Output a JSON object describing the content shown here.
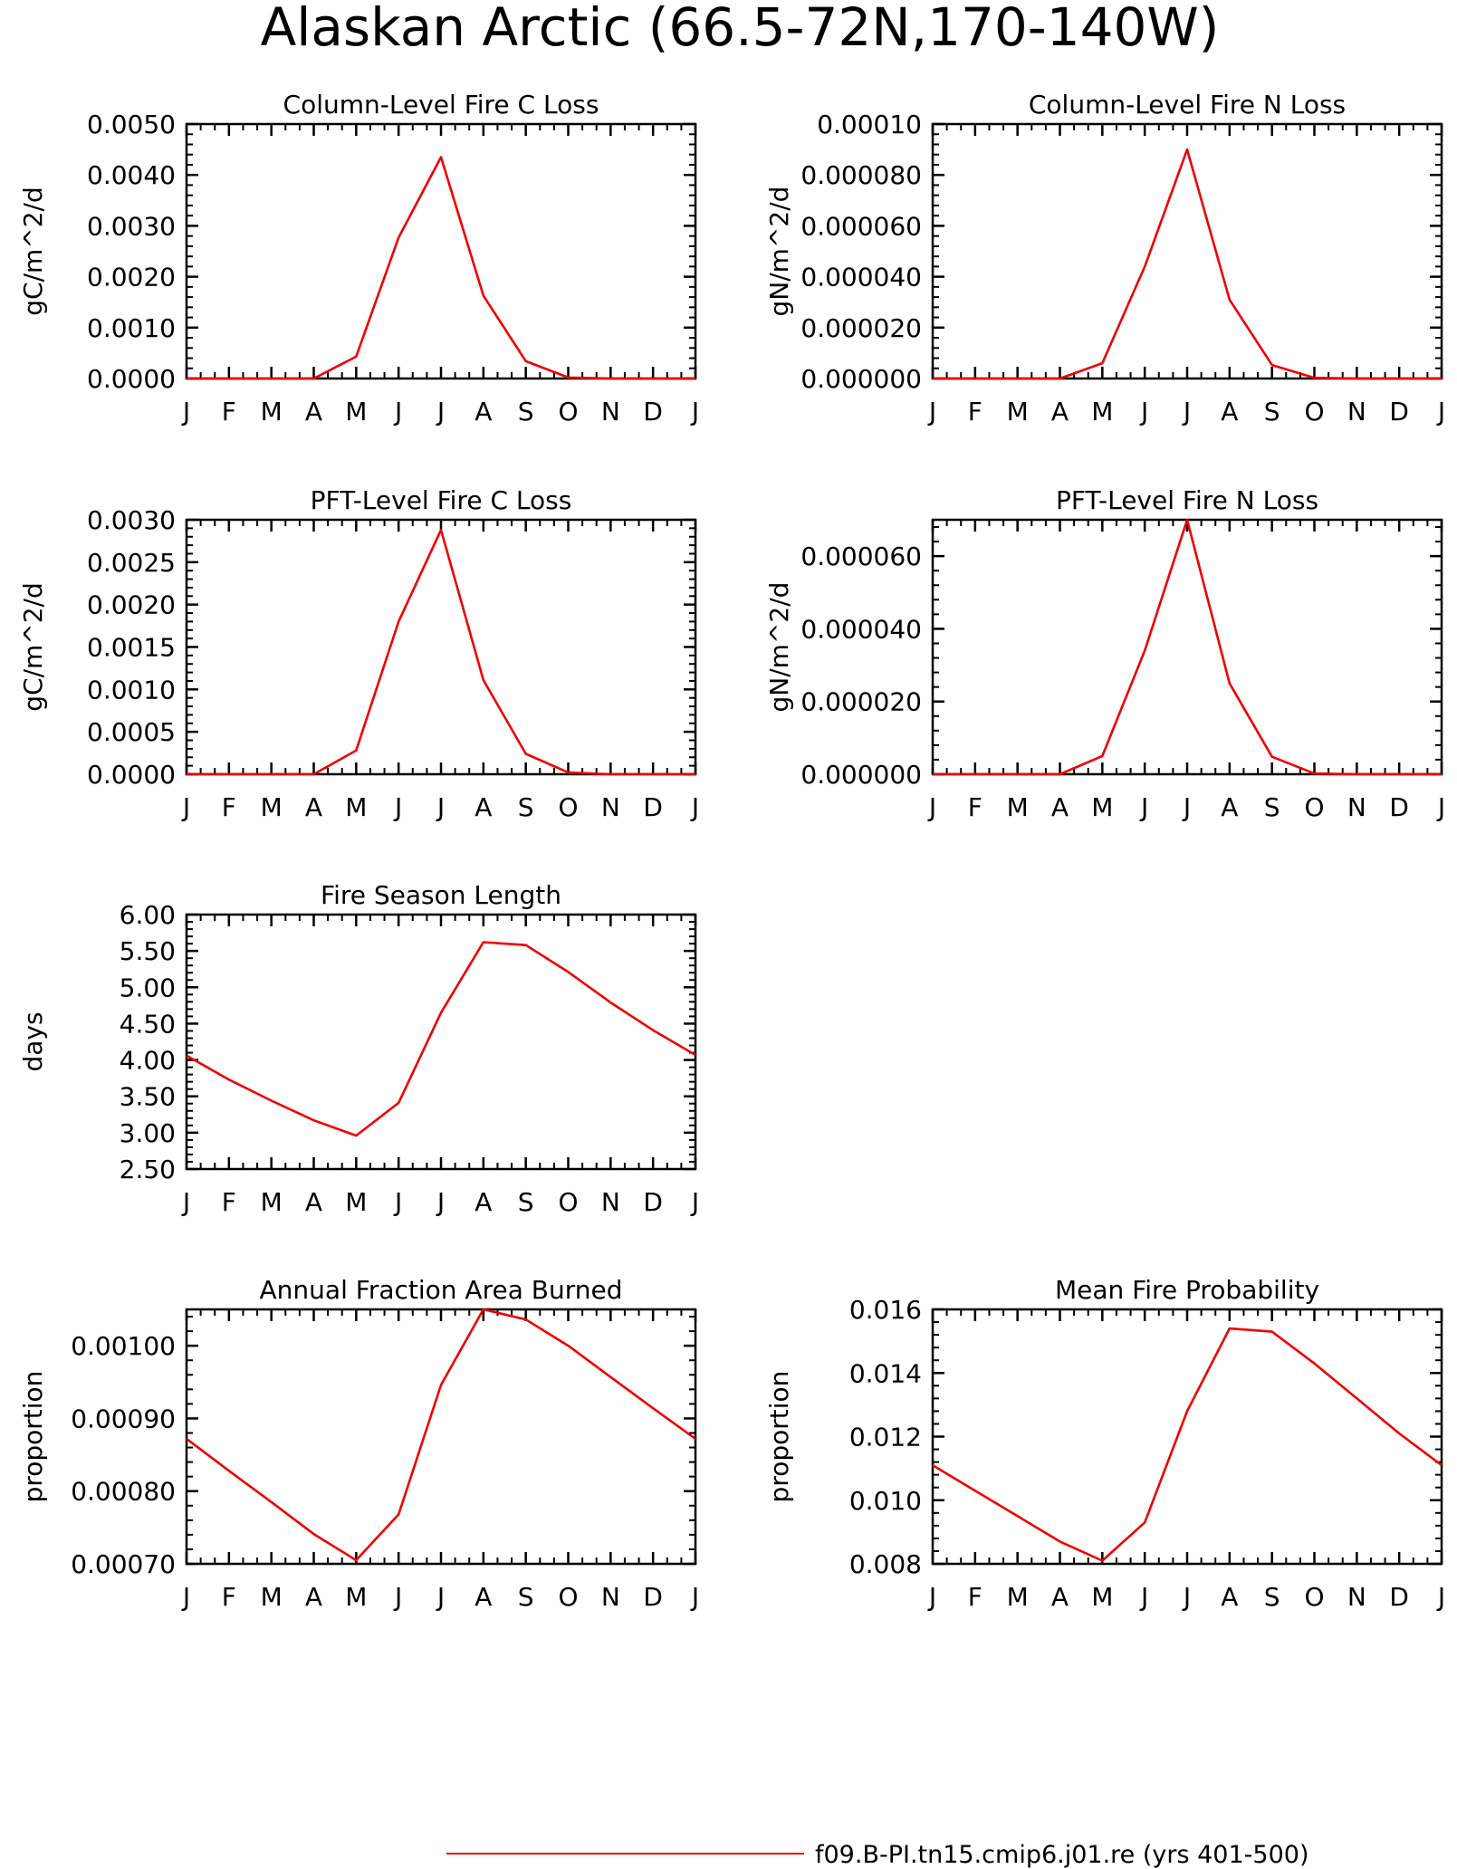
{
  "figure": {
    "title": "Alaskan Arctic (66.5-72N,170-140W)",
    "line_color": "#ee0000"
  },
  "legend": {
    "label": "f09.B-PI.tn15.cmip6.j01.re (yrs 401-500)"
  },
  "chart_data": [
    {
      "type": "line",
      "title": "Column-Level Fire C Loss",
      "ylabel": "gC/m^2/d",
      "categories": [
        "J",
        "F",
        "M",
        "A",
        "M",
        "J",
        "J",
        "A",
        "S",
        "O",
        "N",
        "D",
        "J"
      ],
      "ylim": [
        0,
        0.005
      ],
      "yticks": [
        "0.0000",
        "0.0010",
        "0.0020",
        "0.0030",
        "0.0040",
        "0.0050"
      ],
      "series": [
        {
          "values": [
            0,
            0,
            0,
            0,
            0.00043,
            0.00277,
            0.00435,
            0.00163,
            0.00034,
            2e-05,
            0,
            0,
            0
          ]
        }
      ]
    },
    {
      "type": "line",
      "title": "Column-Level Fire N Loss",
      "ylabel": "gN/m^2/d",
      "categories": [
        "J",
        "F",
        "M",
        "A",
        "M",
        "J",
        "J",
        "A",
        "S",
        "O",
        "N",
        "D",
        "J"
      ],
      "ylim": [
        0,
        0.0001
      ],
      "yticks": [
        "0.000000",
        "0.000020",
        "0.000040",
        "0.000060",
        "0.000080",
        "0.00010"
      ],
      "series": [
        {
          "values": [
            0,
            0,
            0,
            0,
            6e-06,
            4.4e-05,
            9e-05,
            3.1e-05,
            5.3e-06,
            3e-07,
            0,
            0,
            0
          ]
        }
      ]
    },
    {
      "type": "line",
      "title": "PFT-Level Fire C Loss",
      "ylabel": "gC/m^2/d",
      "categories": [
        "J",
        "F",
        "M",
        "A",
        "M",
        "J",
        "J",
        "A",
        "S",
        "O",
        "N",
        "D",
        "J"
      ],
      "ylim": [
        0,
        0.003
      ],
      "yticks": [
        "0.0000",
        "0.0005",
        "0.0010",
        "0.0015",
        "0.0020",
        "0.0025",
        "0.0030"
      ],
      "series": [
        {
          "values": [
            0,
            0,
            0,
            0,
            0.00028,
            0.0018,
            0.00288,
            0.00111,
            0.00024,
            2e-05,
            0,
            0,
            0
          ]
        }
      ]
    },
    {
      "type": "line",
      "title": "PFT-Level Fire N Loss",
      "ylabel": "gN/m^2/d",
      "categories": [
        "J",
        "F",
        "M",
        "A",
        "M",
        "J",
        "J",
        "A",
        "S",
        "O",
        "N",
        "D",
        "J"
      ],
      "ylim": [
        0,
        7e-05
      ],
      "yticks": [
        "0.000000",
        "0.000020",
        "0.000040",
        "0.000060"
      ],
      "series": [
        {
          "values": [
            0,
            0,
            0,
            0,
            5e-06,
            3.4e-05,
            7e-05,
            2.5e-05,
            4.8e-06,
            2e-07,
            0,
            0,
            0
          ]
        }
      ]
    },
    {
      "type": "line",
      "title": "Fire Season Length",
      "ylabel": "days",
      "categories": [
        "J",
        "F",
        "M",
        "A",
        "M",
        "J",
        "J",
        "A",
        "S",
        "O",
        "N",
        "D",
        "J"
      ],
      "ylim": [
        2.5,
        6.0
      ],
      "yticks": [
        "2.50",
        "3.00",
        "3.50",
        "4.00",
        "4.50",
        "5.00",
        "5.50",
        "6.00"
      ],
      "series": [
        {
          "values": [
            4.06,
            3.73,
            3.44,
            3.17,
            2.96,
            3.41,
            4.65,
            5.62,
            5.58,
            5.21,
            4.79,
            4.41,
            4.07
          ]
        }
      ]
    },
    {
      "type": "line",
      "title": "Annual Fraction Area Burned",
      "ylabel": "proportion",
      "categories": [
        "J",
        "F",
        "M",
        "A",
        "M",
        "J",
        "J",
        "A",
        "S",
        "O",
        "N",
        "D",
        "J"
      ],
      "ylim": [
        0.0007,
        0.00105
      ],
      "yticks": [
        "0.00070",
        "0.00080",
        "0.00090",
        "0.00100"
      ],
      "series": [
        {
          "values": [
            0.000872,
            0.000828,
            0.000785,
            0.000741,
            0.000705,
            0.000768,
            0.000946,
            0.00105,
            0.001036,
            0.001,
            0.000957,
            0.000914,
            0.000872
          ]
        }
      ]
    },
    {
      "type": "line",
      "title": "Mean Fire Probability",
      "ylabel": "proportion",
      "categories": [
        "J",
        "F",
        "M",
        "A",
        "M",
        "J",
        "J",
        "A",
        "S",
        "O",
        "N",
        "D",
        "J"
      ],
      "ylim": [
        0.008,
        0.016
      ],
      "yticks": [
        "0.008",
        "0.010",
        "0.012",
        "0.014",
        "0.016"
      ],
      "series": [
        {
          "values": [
            0.0111,
            0.0103,
            0.0095,
            0.0087,
            0.0081,
            0.0093,
            0.0128,
            0.0154,
            0.0153,
            0.0143,
            0.0132,
            0.0121,
            0.0111
          ]
        }
      ]
    }
  ]
}
